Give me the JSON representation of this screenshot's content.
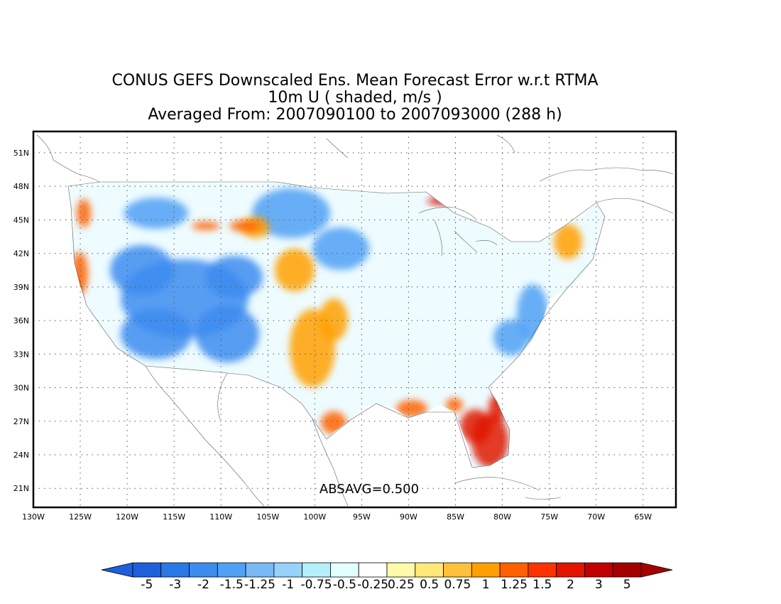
{
  "title": {
    "line1": "CONUS GEFS Downscaled Ens. Mean Forecast Error w.r.t RTMA",
    "line2": "10m U ( shaded, m/s )",
    "line3": "Averaged From: 2007090100 to 2007093000 (288 h)"
  },
  "map": {
    "lon_range": [
      -130,
      -61.5
    ],
    "lat_range": [
      19.3,
      52.9
    ],
    "lon_ticks": [
      "130W",
      "125W",
      "120W",
      "115W",
      "110W",
      "105W",
      "100W",
      "95W",
      "90W",
      "85W",
      "80W",
      "75W",
      "70W",
      "65W"
    ],
    "lat_ticks": [
      "21N",
      "24N",
      "27N",
      "30N",
      "33N",
      "36N",
      "39N",
      "42N",
      "45N",
      "48N",
      "51N"
    ],
    "grid": "dotted",
    "stat_label": "ABSAVG=0.500"
  },
  "colorbar": {
    "labels": [
      "-5",
      "-3",
      "-2",
      "-1.5",
      "-1.25",
      "-1",
      "-0.75",
      "-0.5",
      "-0.25",
      "0.25",
      "0.5",
      "0.75",
      "1",
      "1.25",
      "1.5",
      "2",
      "3",
      "5"
    ],
    "colors": [
      "#1e5fdc",
      "#2a78e6",
      "#3c8cf0",
      "#50a0f5",
      "#78b9f8",
      "#96d2fa",
      "#b4f0fa",
      "#e1ffff",
      "#ffffff",
      "#fffaaa",
      "#ffe878",
      "#ffc03c",
      "#ffa000",
      "#ff6000",
      "#ff3200",
      "#e11400",
      "#c00000",
      "#a50000"
    ],
    "under_color": "#1e5fdc",
    "over_color": "#a50000"
  },
  "regions": [
    {
      "name": "pacific-coast-positive",
      "color": "#ff6000",
      "level": 1.25
    },
    {
      "name": "great-basin-negative",
      "color": "#3c8cf0",
      "level": -2
    },
    {
      "name": "southern-plains-positive",
      "color": "#ffa000",
      "level": 1
    },
    {
      "name": "florida-positive",
      "color": "#e11400",
      "level": 2
    },
    {
      "name": "gulf-coast-positive",
      "color": "#ff6000",
      "level": 1.25
    },
    {
      "name": "lake-superior-positive",
      "color": "#e11400",
      "level": 2
    },
    {
      "name": "east-coast-negative",
      "color": "#50a0f5",
      "level": -1.5
    }
  ]
}
